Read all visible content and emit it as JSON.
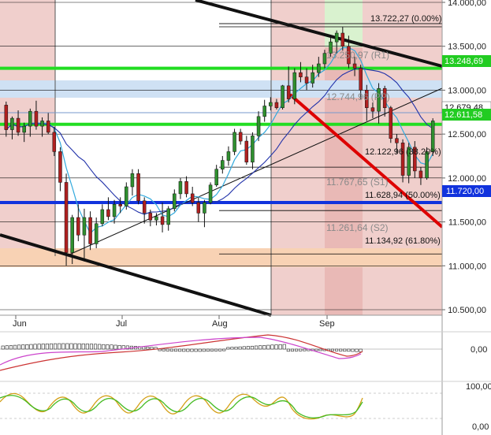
{
  "chart_data": {
    "type": "candlestick",
    "title": "",
    "x_labels": [
      "Jun",
      "Jul",
      "Aug",
      "Sep"
    ],
    "y_axis": {
      "ylim": [
        10400,
        14000
      ],
      "ticks": [
        "14.000,00",
        "13.500,00",
        "13.000,00",
        "12.500,00",
        "12.000,00",
        "11.500,00",
        "11.000,00",
        "10.500,00"
      ],
      "tick_values": [
        14000,
        13500,
        13000,
        12500,
        12000,
        11500,
        11000,
        10500
      ]
    },
    "annotations": {
      "fib_0": "13.722,27 (0.00%)",
      "r1": "13.250,97 (R1)",
      "pp": "12.744,96 (PP)",
      "fib_382": "12.122,96 (38.20%)",
      "s1": "11.767,65 (S1)",
      "fib_50": "11.628,94 (50.00%)",
      "s2": "11.261,64 (S2)",
      "fib_618": "11.134,92 (61.80%)"
    },
    "price_badges": {
      "green_top": "13.248,69",
      "last": "12.679,48",
      "green_mid": "12.611,58",
      "blue": "11.720,00"
    },
    "horizontal_levels": [
      {
        "value": 13722,
        "color": "#000000"
      },
      {
        "value": 13250,
        "color": "#22dd22"
      },
      {
        "value": 12744,
        "color": "#7799cc"
      },
      {
        "value": 12611,
        "color": "#22dd22"
      },
      {
        "value": 12123,
        "color": "#000000"
      },
      {
        "value": 11720,
        "color": "#1133dd"
      },
      {
        "value": 11629,
        "color": "#000000"
      },
      {
        "value": 11135,
        "color": "#000000"
      }
    ],
    "candles": [
      [
        12830,
        12870,
        12470,
        12550
      ],
      [
        12550,
        12700,
        12440,
        12680
      ],
      [
        12680,
        12770,
        12480,
        12520
      ],
      [
        12520,
        12630,
        12410,
        12590
      ],
      [
        12590,
        12790,
        12470,
        12760
      ],
      [
        12760,
        12880,
        12550,
        12590
      ],
      [
        12590,
        12690,
        12470,
        12650
      ],
      [
        12650,
        12740,
        12500,
        12520
      ],
      [
        12520,
        12580,
        12250,
        12300
      ],
      [
        12300,
        12350,
        11850,
        11950
      ],
      [
        11950,
        12050,
        11000,
        11150
      ],
      [
        11150,
        11580,
        11020,
        11550
      ],
      [
        11550,
        11700,
        11280,
        11350
      ],
      [
        11350,
        11650,
        11050,
        11550
      ],
      [
        11550,
        11620,
        11180,
        11250
      ],
      [
        11250,
        11550,
        11200,
        11480
      ],
      [
        11480,
        11700,
        11450,
        11640
      ],
      [
        11640,
        11780,
        11520,
        11560
      ],
      [
        11560,
        11750,
        11480,
        11700
      ],
      [
        11700,
        11780,
        11600,
        11680
      ],
      [
        11680,
        11950,
        11640,
        11900
      ],
      [
        11900,
        12100,
        11800,
        12050
      ],
      [
        12050,
        12100,
        11700,
        11740
      ],
      [
        11740,
        11780,
        11480,
        11600
      ],
      [
        11600,
        11640,
        11450,
        11520
      ],
      [
        11520,
        11600,
        11460,
        11560
      ],
      [
        11560,
        11720,
        11380,
        11470
      ],
      [
        11470,
        11680,
        11400,
        11650
      ],
      [
        11650,
        11870,
        11620,
        11820
      ],
      [
        11820,
        12000,
        11760,
        11960
      ],
      [
        11960,
        12020,
        11780,
        11820
      ],
      [
        11820,
        11900,
        11680,
        11720
      ],
      [
        11720,
        11780,
        11500,
        11600
      ],
      [
        11600,
        11750,
        11440,
        11720
      ],
      [
        11720,
        11950,
        11700,
        11920
      ],
      [
        11920,
        12150,
        11900,
        12100
      ],
      [
        12100,
        12250,
        12050,
        12200
      ],
      [
        12200,
        12360,
        12140,
        12300
      ],
      [
        12300,
        12560,
        12260,
        12520
      ],
      [
        12520,
        12560,
        12380,
        12420
      ],
      [
        12420,
        12480,
        12150,
        12180
      ],
      [
        12180,
        12520,
        12100,
        12480
      ],
      [
        12480,
        12760,
        12420,
        12700
      ],
      [
        12700,
        12890,
        12640,
        12820
      ],
      [
        12820,
        12920,
        12770,
        12860
      ],
      [
        12860,
        12900,
        12780,
        12800
      ],
      [
        12800,
        13060,
        12780,
        13050
      ],
      [
        13050,
        13270,
        12860,
        12900
      ],
      [
        12900,
        13250,
        12840,
        13200
      ],
      [
        13200,
        13320,
        13090,
        13150
      ],
      [
        13150,
        13250,
        13000,
        13080
      ],
      [
        13080,
        13290,
        13030,
        13200
      ],
      [
        13200,
        13380,
        13150,
        13300
      ],
      [
        13300,
        13460,
        13250,
        13420
      ],
      [
        13420,
        13600,
        13380,
        13550
      ],
      [
        13550,
        13680,
        13420,
        13650
      ],
      [
        13650,
        13720,
        13450,
        13500
      ],
      [
        13500,
        13620,
        13250,
        13300
      ],
      [
        13300,
        13380,
        13160,
        13250
      ],
      [
        13250,
        13290,
        12900,
        13000
      ],
      [
        13000,
        13060,
        12650,
        12800
      ],
      [
        12800,
        12860,
        12680,
        12760
      ],
      [
        12760,
        13080,
        12620,
        13020
      ],
      [
        13020,
        13050,
        12700,
        12800
      ],
      [
        12800,
        12820,
        12400,
        12450
      ],
      [
        12450,
        12500,
        12280,
        12400
      ],
      [
        12400,
        12440,
        11950,
        12030
      ],
      [
        12030,
        12400,
        11940,
        12350
      ],
      [
        12350,
        12420,
        12000,
        12080
      ],
      [
        12080,
        12120,
        11920,
        12000
      ],
      [
        12000,
        12350,
        11980,
        12300
      ],
      [
        12300,
        12680,
        12250,
        12650
      ]
    ]
  }
}
